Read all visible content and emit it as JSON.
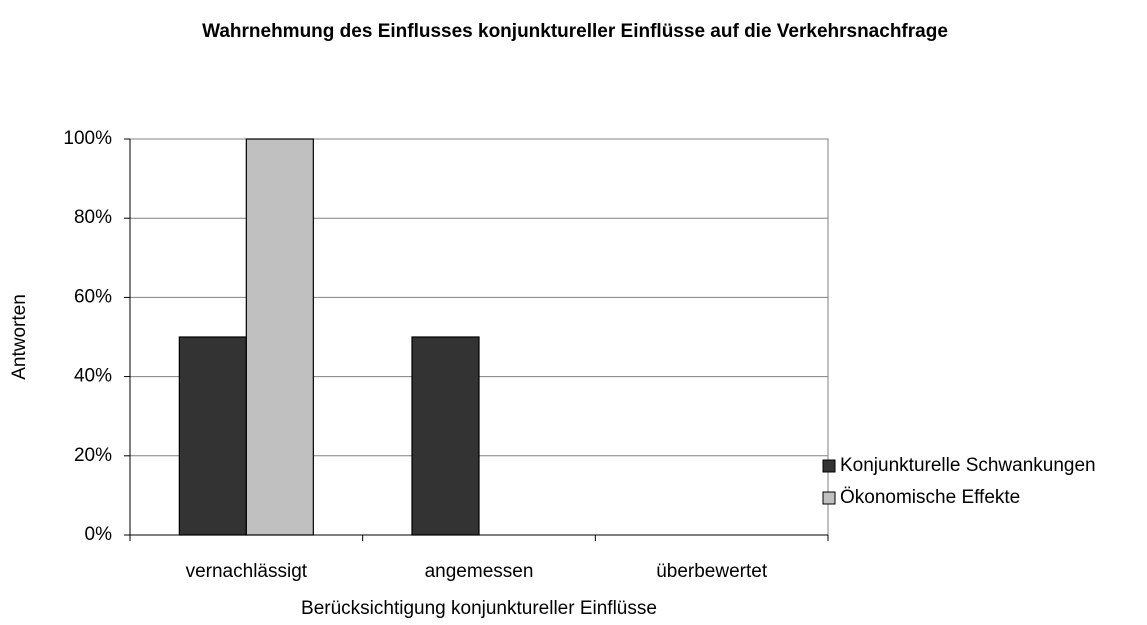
{
  "chart_data": {
    "type": "bar",
    "title": "Wahrnehmung des Einflusses konjunktureller Einflüsse auf die Verkehrsnachfrage",
    "x_label": "Berücksichtigung konjunktureller Einflüsse",
    "y_label": "Antworten",
    "categories": [
      "vernachlässigt",
      "angemessen",
      "überbewertet"
    ],
    "series": [
      {
        "name": "Konjunkturelle Schwankungen",
        "color": "#333333",
        "values": [
          50,
          50,
          0
        ]
      },
      {
        "name": "Ökonomische Effekte",
        "color": "#c0c0c0",
        "values": [
          100,
          0,
          0
        ]
      }
    ],
    "ylim": [
      0,
      100
    ],
    "yticks": [
      {
        "value": 0,
        "label": "0%"
      },
      {
        "value": 20,
        "label": "20%"
      },
      {
        "value": 40,
        "label": "40%"
      },
      {
        "value": 60,
        "label": "60%"
      },
      {
        "value": 80,
        "label": "80%"
      },
      {
        "value": 100,
        "label": "100%"
      }
    ],
    "grid": true,
    "legend": "right"
  }
}
